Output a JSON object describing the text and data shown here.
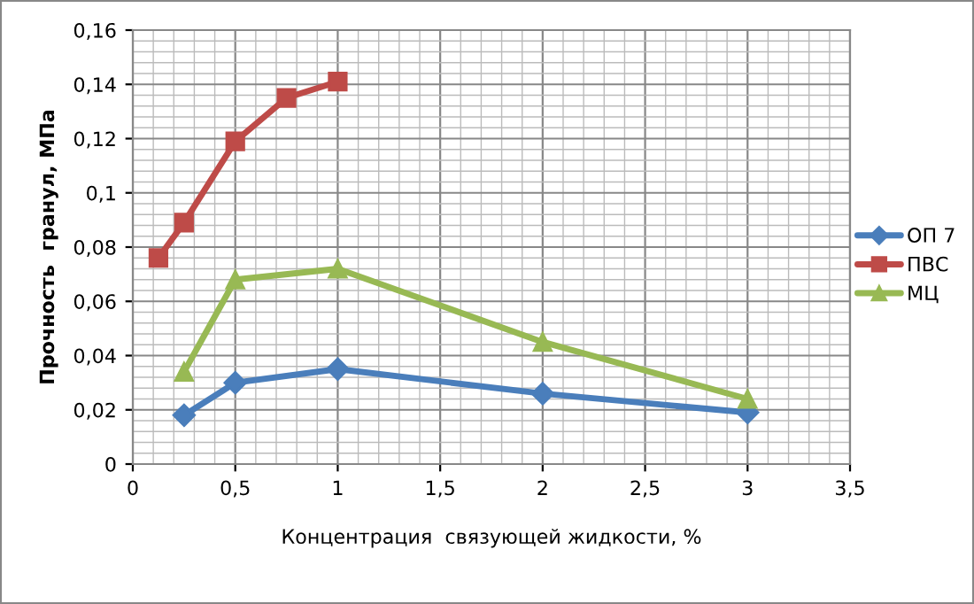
{
  "chart_data": {
    "type": "line",
    "xlabel": "Концентрация  связующей жидкости, %",
    "ylabel": "Прочность  гранул, МПа",
    "xlim": [
      0,
      3.5
    ],
    "xticks": [
      {
        "value": 0,
        "label": "0"
      },
      {
        "value": 0.5,
        "label": "0,5"
      },
      {
        "value": 1,
        "label": "1"
      },
      {
        "value": 1.5,
        "label": "1,5"
      },
      {
        "value": 2,
        "label": "2"
      },
      {
        "value": 2.5,
        "label": "2,5"
      },
      {
        "value": 3,
        "label": "3"
      },
      {
        "value": 3.5,
        "label": "3,5"
      }
    ],
    "ylim": [
      0,
      0.16
    ],
    "yticks": [
      {
        "value": 0,
        "label": "0"
      },
      {
        "value": 0.02,
        "label": "0,02"
      },
      {
        "value": 0.04,
        "label": "0,04"
      },
      {
        "value": 0.06,
        "label": "0,06"
      },
      {
        "value": 0.08,
        "label": "0,08"
      },
      {
        "value": 0.1,
        "label": "0,1"
      },
      {
        "value": 0.12,
        "label": "0,12"
      },
      {
        "value": 0.14,
        "label": "0,14"
      },
      {
        "value": 0.16,
        "label": "0,16"
      }
    ],
    "grid": true,
    "legend": "right",
    "series": [
      {
        "name": "ОП 7",
        "color": "#4a7ebb",
        "marker": "diamond",
        "x": [
          0.25,
          0.5,
          1,
          2,
          3
        ],
        "values": [
          0.018,
          0.03,
          0.035,
          0.026,
          0.019
        ]
      },
      {
        "name": "ПВС",
        "color": "#be4b48",
        "marker": "square",
        "x": [
          0.125,
          0.25,
          0.5,
          0.75,
          1
        ],
        "values": [
          0.076,
          0.089,
          0.119,
          0.135,
          0.141
        ]
      },
      {
        "name": "МЦ",
        "color": "#98b954",
        "marker": "triangle",
        "x": [
          0.25,
          0.5,
          1,
          2,
          3
        ],
        "values": [
          0.034,
          0.068,
          0.072,
          0.045,
          0.024
        ]
      }
    ]
  }
}
